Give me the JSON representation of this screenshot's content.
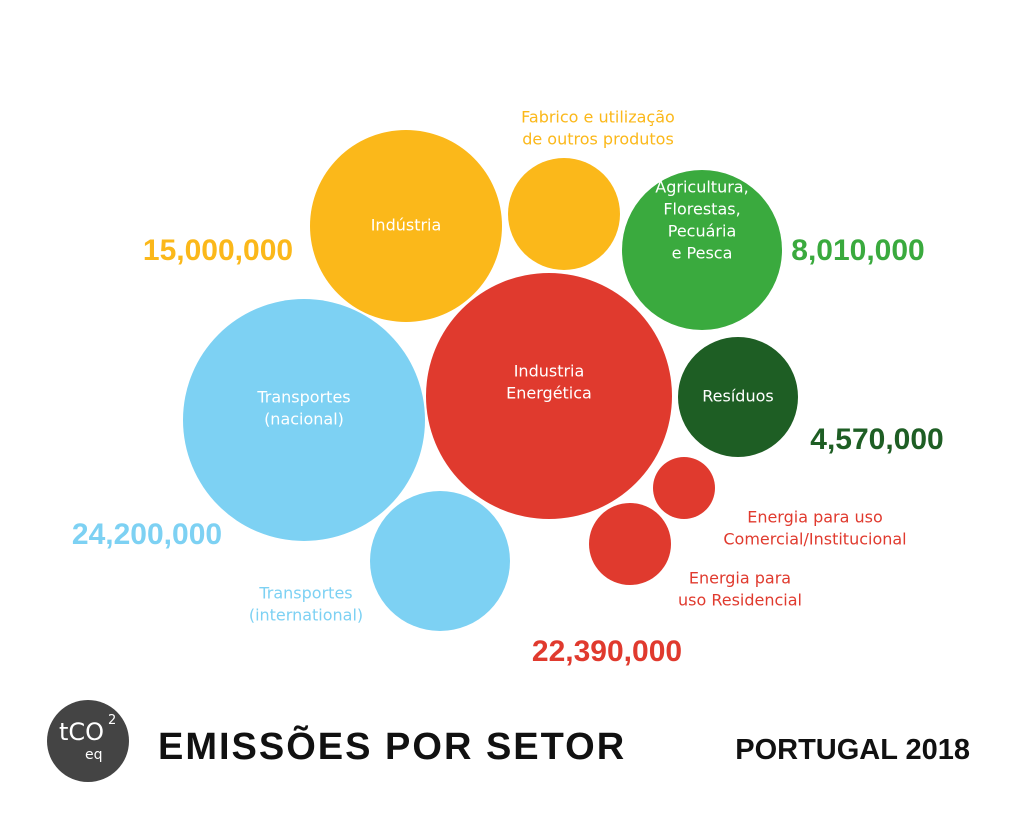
{
  "chart_data": {
    "type": "bubble",
    "title": "EMISSÕES POR SETOR",
    "subtitle": "PORTUGAL 2018",
    "unit": {
      "main": "tCO",
      "superscript": "2",
      "subscript": "eq"
    },
    "groups": [
      {
        "id": "industria-group",
        "total": "15,000,000",
        "color": "#FBB81A"
      },
      {
        "id": "agricultura-group",
        "total": "8,010,000",
        "color": "#3AAA3E"
      },
      {
        "id": "residuos-group",
        "total": "4,570,000",
        "color": "#1E5E24"
      },
      {
        "id": "transportes-group",
        "total": "24,200,000",
        "color": "#7DD1F3"
      },
      {
        "id": "energia-group",
        "total": "22,390,000",
        "color": "#E03A2E"
      }
    ],
    "bubbles": [
      {
        "id": "industria",
        "label": [
          "Indústria"
        ],
        "color": "#FBB81A",
        "label_inside": true
      },
      {
        "id": "fabrico",
        "label": [
          "Fabrico e utilização",
          "de outros produtos"
        ],
        "color": "#FBB81A",
        "label_inside": false
      },
      {
        "id": "agricultura",
        "label": [
          "Agricultura,",
          "Florestas,",
          "Pecuária",
          "e Pesca"
        ],
        "color": "#3AAA3E",
        "label_inside": true
      },
      {
        "id": "industria-energetica",
        "label": [
          "Industria",
          "Energética"
        ],
        "color": "#E03A2E",
        "label_inside": true
      },
      {
        "id": "residuos",
        "label": [
          "Resíduos"
        ],
        "color": "#1E5E24",
        "label_inside": true
      },
      {
        "id": "transportes-nacional",
        "label": [
          "Transportes",
          "(nacional)"
        ],
        "color": "#7DD1F3",
        "label_inside": true
      },
      {
        "id": "transportes-internacional",
        "label": [
          "Transportes",
          "(international)"
        ],
        "color": "#7DD1F3",
        "label_inside": false
      },
      {
        "id": "energia-comercial",
        "label": [
          "Energia para uso",
          "Comercial/Institucional"
        ],
        "color": "#E03A2E",
        "label_inside": false
      },
      {
        "id": "energia-residencial",
        "label": [
          "Energia para",
          "uso Residencial"
        ],
        "color": "#E03A2E",
        "label_inside": false
      }
    ]
  }
}
